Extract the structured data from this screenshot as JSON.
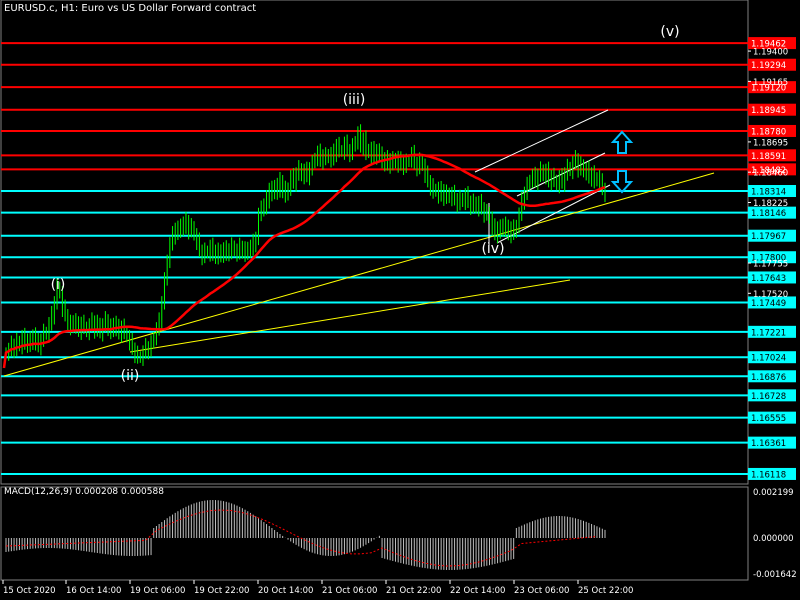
{
  "header": {
    "title": "EURUSD.c, H1:  Euro vs US Dollar Forward contract"
  },
  "colors": {
    "background": "#000000",
    "price_bar": "#00ff00",
    "ma_line": "#ff0000",
    "red_level": "#ff0000",
    "cyan_level": "#00ffff",
    "trend_line": "#ffff00",
    "channel_line": "#ffffff",
    "arrow": "#00bfff",
    "axis_text": "#ffffff",
    "macd_hist": "#c0c0c0",
    "macd_signal": "#ff0000"
  },
  "wave_labels": [
    {
      "text": "(i)",
      "x": 34,
      "price": 1.1764
    },
    {
      "text": "(ii)",
      "x": 73,
      "price": 1.1685
    },
    {
      "text": "(iii)",
      "x": 197,
      "price": 1.1889
    },
    {
      "text": "(iv)",
      "x": 284,
      "price": 1.1788
    },
    {
      "text": "(v)",
      "x": 392,
      "price": 1.1945
    }
  ],
  "red_levels": [
    "1.19462",
    "1.19294",
    "1.19120",
    "1.18945",
    "1.18780",
    "1.18591",
    "1.18482"
  ],
  "cyan_levels": [
    "1.18314",
    "1.18146",
    "1.17967",
    "1.17800",
    "1.17643",
    "1.17449",
    "1.17221",
    "1.17024",
    "1.16876",
    "1.16728",
    "1.16555",
    "1.16361",
    "1.16118"
  ],
  "axis_prices": [
    "1.19400",
    "1.19165",
    "1.18695",
    "1.18460",
    "1.18225",
    "1.17755",
    "1.17520"
  ],
  "macd": {
    "title": "MACD(12,26,9) 0.000208 0.000588",
    "scale_labels": [
      "0.002199",
      "0.000000",
      "-0.001642"
    ]
  },
  "time_axis": [
    "15 Oct 2020",
    "16 Oct 14:00",
    "19 Oct 06:00",
    "19 Oct 22:00",
    "20 Oct 14:00",
    "21 Oct 06:00",
    "21 Oct 22:00",
    "22 Oct 14:00",
    "23 Oct 06:00",
    "25 Oct 22:00"
  ],
  "chart_data": {
    "type": "candlestick",
    "symbol": "EURUSD.c",
    "timeframe": "H1",
    "ylim": [
      1.1604,
      1.1968
    ],
    "close": [
      1.1706,
      1.1708,
      1.1712,
      1.1709,
      1.1715,
      1.1711,
      1.1718,
      1.1713,
      1.1716,
      1.1712,
      1.172,
      1.1714,
      1.1711,
      1.1716,
      1.1722,
      1.172,
      1.1728,
      1.1735,
      1.1745,
      1.1757,
      1.1752,
      1.174,
      1.1735,
      1.1729,
      1.1725,
      1.1731,
      1.1727,
      1.1723,
      1.1729,
      1.1726,
      1.1722,
      1.1727,
      1.173,
      1.1724,
      1.1729,
      1.1721,
      1.1727,
      1.1731,
      1.1726,
      1.1722,
      1.1729,
      1.1725,
      1.1721,
      1.1726,
      1.1722,
      1.1718,
      1.1714,
      1.1709,
      1.1705,
      1.1703,
      1.1702,
      1.1706,
      1.171,
      1.1708,
      1.1713,
      1.1718,
      1.1724,
      1.173,
      1.1745,
      1.1762,
      1.1778,
      1.179,
      1.1797,
      1.1802,
      1.1799,
      1.1806,
      1.1803,
      1.1808,
      1.1801,
      1.1804,
      1.1797,
      1.1792,
      1.1785,
      1.1781,
      1.1785,
      1.1783,
      1.1788,
      1.1782,
      1.1785,
      1.178,
      1.1786,
      1.1782,
      1.1786,
      1.1784,
      1.1789,
      1.1785,
      1.1783,
      1.1788,
      1.1786,
      1.1782,
      1.1788,
      1.1786,
      1.1791,
      1.1795,
      1.1812,
      1.182,
      1.1818,
      1.1825,
      1.1833,
      1.1829,
      1.1836,
      1.1831,
      1.1839,
      1.1833,
      1.1828,
      1.1834,
      1.1842,
      1.1838,
      1.1845,
      1.1849,
      1.1843,
      1.1847,
      1.1843,
      1.1849,
      1.1853,
      1.1857,
      1.1861,
      1.1855,
      1.1859,
      1.1857,
      1.186,
      1.1856,
      1.1861,
      1.1867,
      1.1863,
      1.1862,
      1.1868,
      1.1863,
      1.1861,
      1.1866,
      1.187,
      1.1876,
      1.1866,
      1.1872,
      1.1861,
      1.1864,
      1.1858,
      1.1863,
      1.1859,
      1.1862,
      1.1853,
      1.1856,
      1.1852,
      1.1856,
      1.1853,
      1.1857,
      1.1852,
      1.1855,
      1.1851,
      1.1854,
      1.1856,
      1.186,
      1.1853,
      1.185,
      1.1855,
      1.1851,
      1.1844,
      1.1839,
      1.1835,
      1.1831,
      1.1833,
      1.1828,
      1.1832,
      1.1827,
      1.183,
      1.1826,
      1.1829,
      1.1825,
      1.1822,
      1.1826,
      1.1823,
      1.1828,
      1.1823,
      1.182,
      1.1823,
      1.1818,
      1.1822,
      1.1818,
      1.1814,
      1.1815,
      1.181,
      1.1803,
      1.1798,
      1.1803,
      1.18,
      1.1806,
      1.1802,
      1.1798,
      1.1803,
      1.1799,
      1.1805,
      1.1813,
      1.1824,
      1.183,
      1.1836,
      1.184,
      1.1843,
      1.1839,
      1.1844,
      1.1848,
      1.1843,
      1.1847,
      1.1839,
      1.1843,
      1.184,
      1.1836,
      1.1842,
      1.1838,
      1.1845,
      1.185,
      1.1847,
      1.1853,
      1.1856,
      1.1849,
      1.1852,
      1.1846,
      1.1848,
      1.1842,
      1.1845,
      1.1839,
      1.1842,
      1.1838,
      1.1833,
      1.183
    ]
  }
}
